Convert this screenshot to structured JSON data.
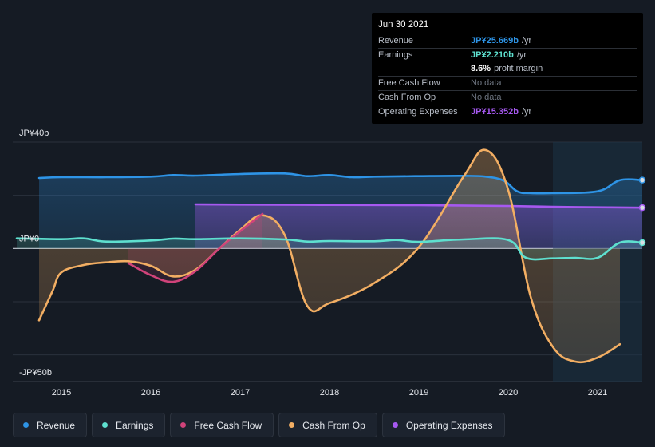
{
  "chart_data": {
    "type": "area",
    "title": "",
    "ylim": [
      -50,
      40
    ],
    "xlim": [
      2014.5,
      2021.5
    ],
    "y_tick_labels": [
      {
        "value": 40,
        "label": "JP¥40b"
      },
      {
        "value": 0,
        "label": "JP¥0"
      },
      {
        "value": -50,
        "label": "-JP¥50b"
      }
    ],
    "x_ticks": [
      {
        "value": 2015,
        "label": "2015"
      },
      {
        "value": 2016,
        "label": "2016"
      },
      {
        "value": 2017,
        "label": "2017"
      },
      {
        "value": 2018,
        "label": "2018"
      },
      {
        "value": 2019,
        "label": "2019"
      },
      {
        "value": 2020,
        "label": "2020"
      },
      {
        "value": 2021,
        "label": "2021"
      }
    ],
    "forecast_start": 2020.5,
    "series": [
      {
        "name": "Revenue",
        "key": "revenue",
        "color": "#2e94e6",
        "points": [
          [
            2014.75,
            26.5
          ],
          [
            2015.0,
            26.8
          ],
          [
            2015.5,
            26.8
          ],
          [
            2016.0,
            27.0
          ],
          [
            2016.25,
            27.6
          ],
          [
            2016.5,
            27.4
          ],
          [
            2017.0,
            28.0
          ],
          [
            2017.5,
            28.2
          ],
          [
            2017.75,
            27.2
          ],
          [
            2018.0,
            27.6
          ],
          [
            2018.25,
            26.8
          ],
          [
            2018.5,
            27.0
          ],
          [
            2019.0,
            27.2
          ],
          [
            2019.5,
            27.3
          ],
          [
            2019.75,
            27.0
          ],
          [
            2019.95,
            25.5
          ],
          [
            2020.1,
            21.5
          ],
          [
            2020.25,
            20.8
          ],
          [
            2020.5,
            20.8
          ],
          [
            2021.0,
            21.5
          ],
          [
            2021.25,
            25.7
          ],
          [
            2021.5,
            25.7
          ]
        ]
      },
      {
        "name": "Earnings",
        "key": "earnings",
        "color": "#5ee0cf",
        "points": [
          [
            2014.5,
            3.8
          ],
          [
            2015.0,
            3.5
          ],
          [
            2015.25,
            3.8
          ],
          [
            2015.5,
            2.6
          ],
          [
            2016.0,
            3.0
          ],
          [
            2016.25,
            3.7
          ],
          [
            2016.5,
            3.5
          ],
          [
            2017.0,
            3.8
          ],
          [
            2017.5,
            3.4
          ],
          [
            2017.75,
            2.6
          ],
          [
            2018.0,
            2.8
          ],
          [
            2018.5,
            2.7
          ],
          [
            2018.75,
            3.2
          ],
          [
            2019.0,
            2.5
          ],
          [
            2019.5,
            3.4
          ],
          [
            2020.0,
            3.2
          ],
          [
            2020.2,
            -3.5
          ],
          [
            2020.5,
            -3.7
          ],
          [
            2020.75,
            -3.5
          ],
          [
            2021.0,
            -3.5
          ],
          [
            2021.25,
            2.21
          ],
          [
            2021.5,
            2.21
          ]
        ]
      },
      {
        "name": "Free Cash Flow",
        "key": "fcf",
        "color": "#d0437a",
        "points": [
          [
            2015.75,
            -5.5
          ],
          [
            2016.0,
            -10.0
          ],
          [
            2016.25,
            -12.5
          ],
          [
            2016.5,
            -8.5
          ],
          [
            2016.75,
            -0.5
          ],
          [
            2017.0,
            6.5
          ],
          [
            2017.25,
            13.0
          ]
        ]
      },
      {
        "name": "Cash From Op",
        "key": "cfo",
        "color": "#f2ae63",
        "points": [
          [
            2014.75,
            -27.0
          ],
          [
            2014.9,
            -16.0
          ],
          [
            2015.0,
            -9.0
          ],
          [
            2015.25,
            -6.2
          ],
          [
            2015.5,
            -5.2
          ],
          [
            2015.75,
            -4.8
          ],
          [
            2016.0,
            -6.5
          ],
          [
            2016.25,
            -10.5
          ],
          [
            2016.5,
            -8.0
          ],
          [
            2016.75,
            -0.5
          ],
          [
            2017.0,
            7.0
          ],
          [
            2017.25,
            12.5
          ],
          [
            2017.5,
            5.0
          ],
          [
            2017.75,
            -21.5
          ],
          [
            2018.0,
            -20.5
          ],
          [
            2018.5,
            -13.0
          ],
          [
            2019.0,
            0.5
          ],
          [
            2019.5,
            27.0
          ],
          [
            2019.75,
            37.0
          ],
          [
            2020.0,
            22.0
          ],
          [
            2020.25,
            -18.0
          ],
          [
            2020.5,
            -37.0
          ],
          [
            2020.75,
            -42.5
          ],
          [
            2021.0,
            -41.0
          ],
          [
            2021.25,
            -36.0
          ]
        ]
      },
      {
        "name": "Operating Expenses",
        "key": "opex",
        "color": "#a659f0",
        "points": [
          [
            2016.5,
            16.6
          ],
          [
            2017.0,
            16.5
          ],
          [
            2018.0,
            16.4
          ],
          [
            2019.0,
            16.3
          ],
          [
            2020.0,
            16.0
          ],
          [
            2020.5,
            15.7
          ],
          [
            2021.0,
            15.5
          ],
          [
            2021.5,
            15.352
          ]
        ]
      }
    ]
  },
  "tooltip": {
    "date": "Jun 30 2021",
    "rows": [
      {
        "label": "Revenue",
        "value": "JP¥25.669b",
        "unit": "/yr",
        "color": "#2e94e6"
      },
      {
        "label": "Earnings",
        "value": "JP¥2.210b",
        "unit": "/yr",
        "color": "#5ee0cf"
      },
      {
        "label": "",
        "value": "8.6%",
        "unit": "profit margin",
        "color": "#ffffff"
      },
      {
        "label": "Free Cash Flow",
        "value": "No data",
        "unit": "",
        "color": ""
      },
      {
        "label": "Cash From Op",
        "value": "No data",
        "unit": "",
        "color": ""
      },
      {
        "label": "Operating Expenses",
        "value": "JP¥15.352b",
        "unit": "/yr",
        "color": "#a659f0"
      }
    ]
  },
  "legend": [
    {
      "label": "Revenue",
      "color": "#2e94e6"
    },
    {
      "label": "Earnings",
      "color": "#5ee0cf"
    },
    {
      "label": "Free Cash Flow",
      "color": "#d0437a"
    },
    {
      "label": "Cash From Op",
      "color": "#f2ae63"
    },
    {
      "label": "Operating Expenses",
      "color": "#a659f0"
    }
  ]
}
